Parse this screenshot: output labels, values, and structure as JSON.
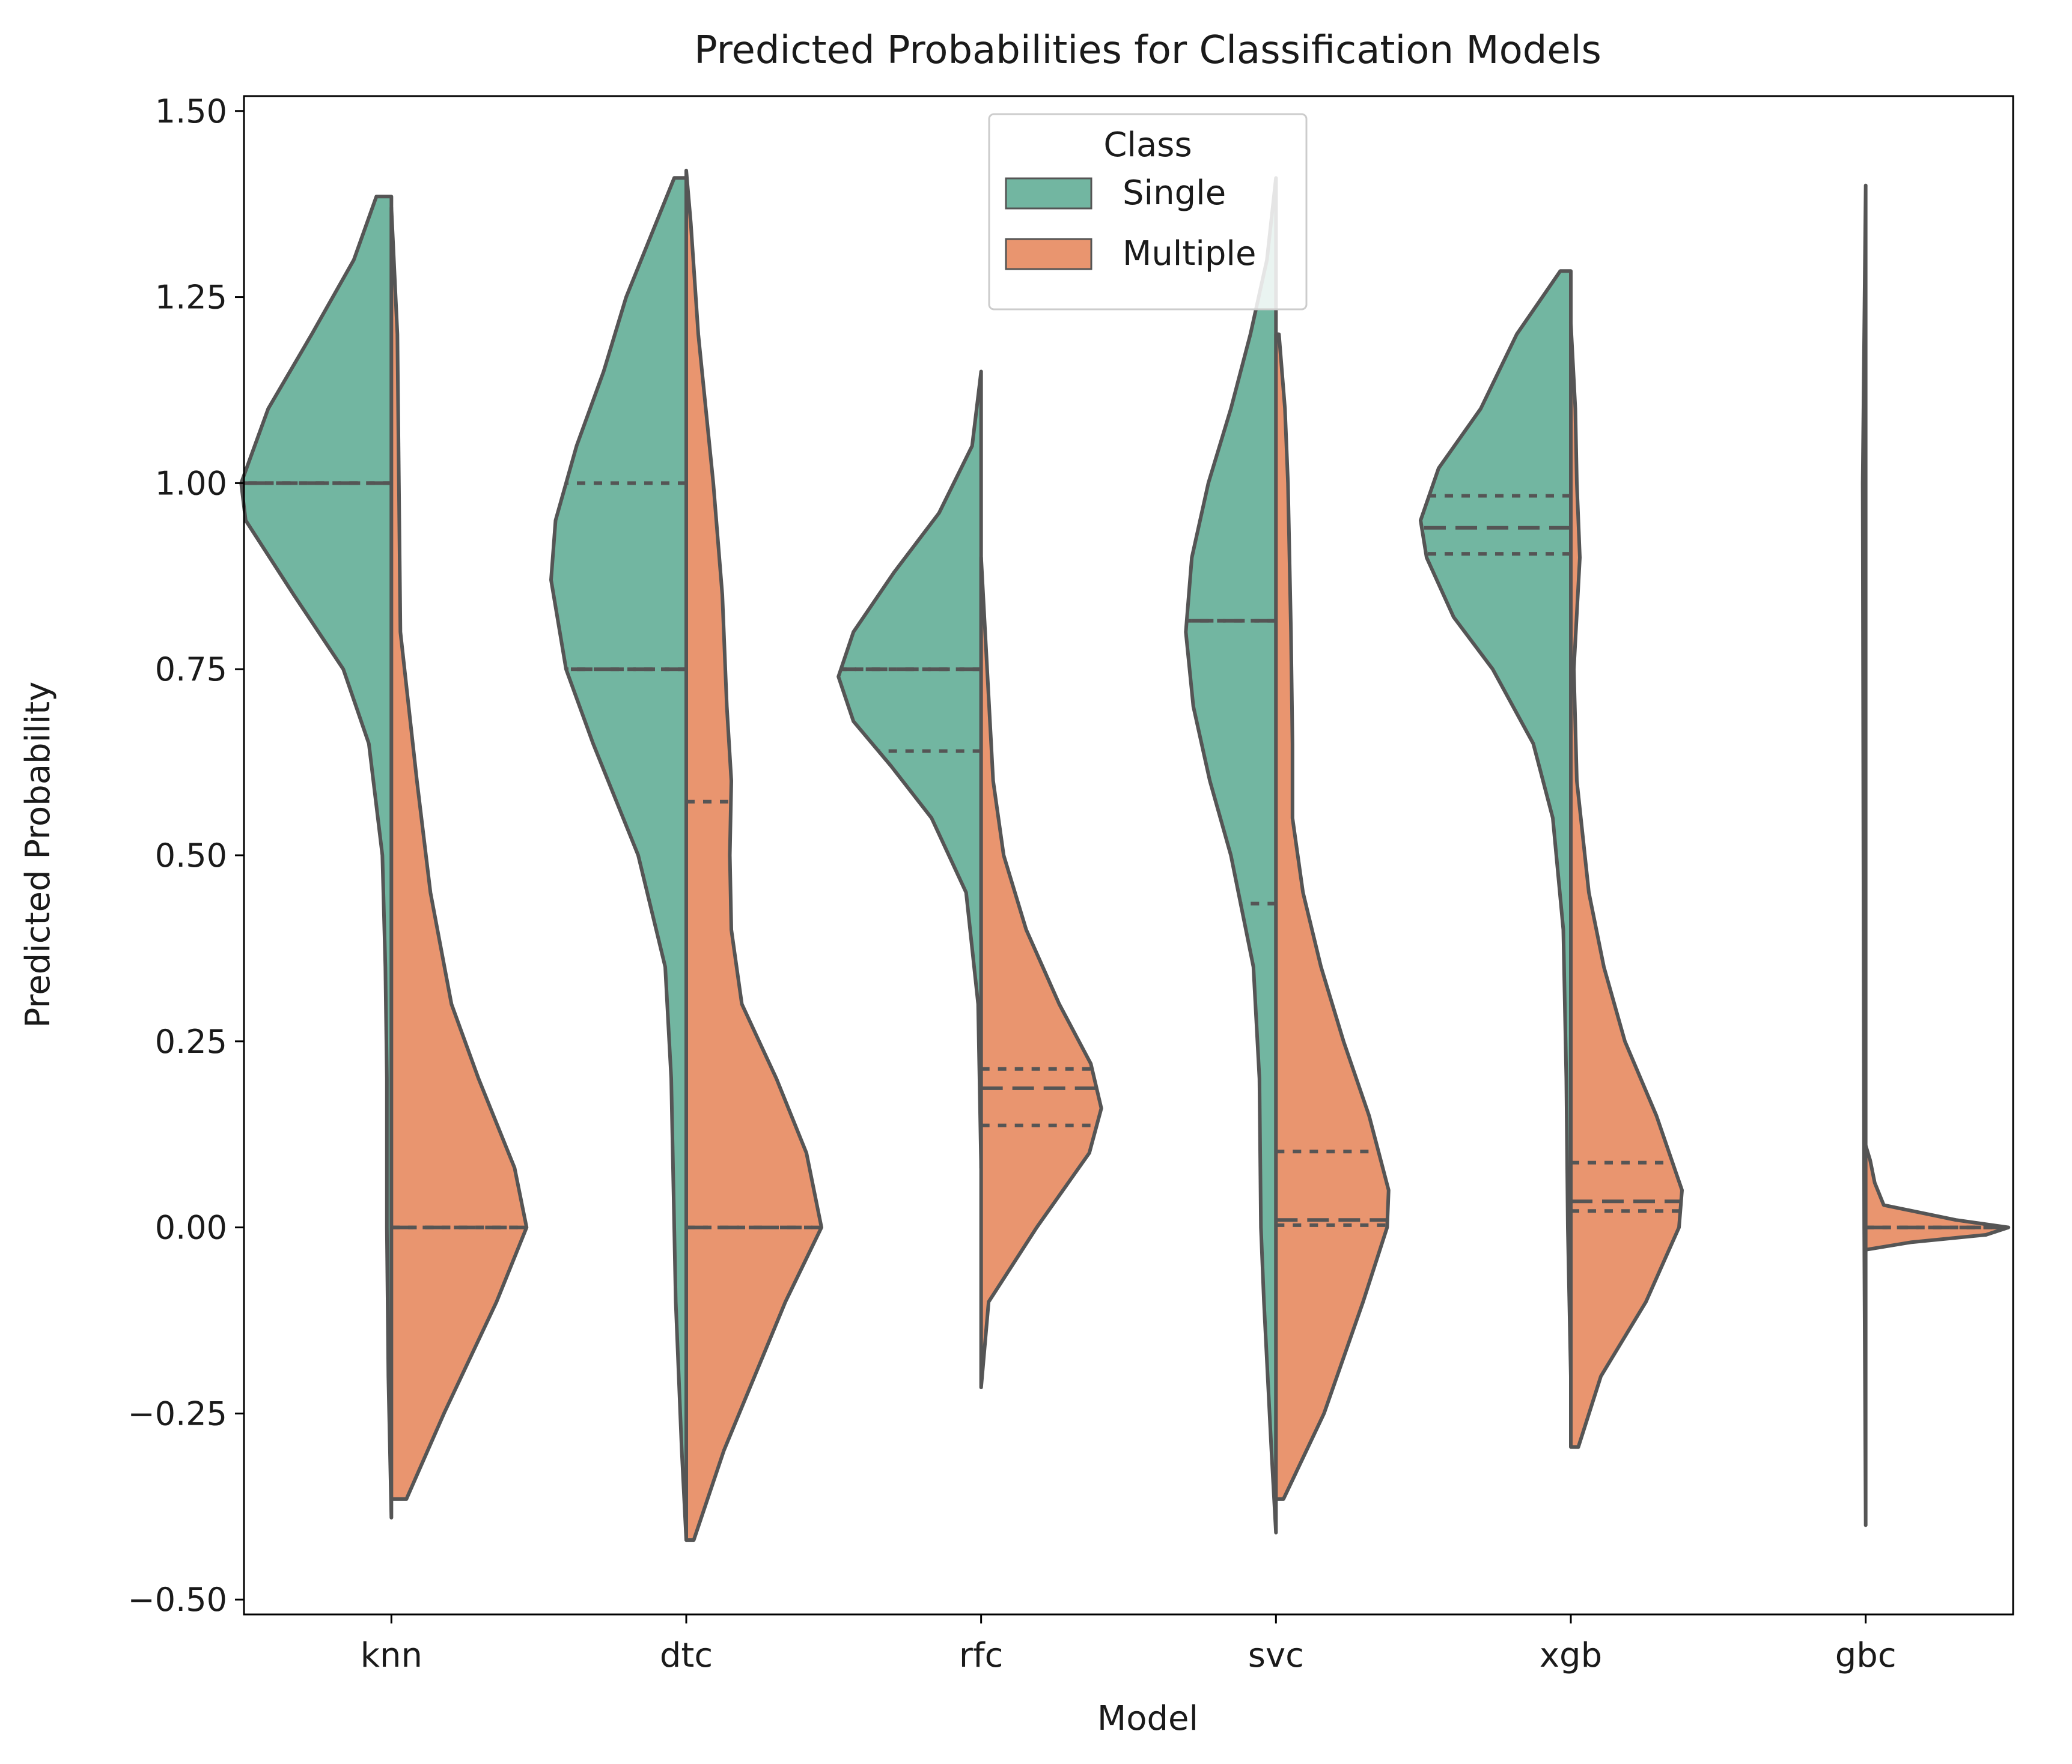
{
  "chart_data": {
    "type": "violin",
    "title": "Predicted Probabilities for Classification Models",
    "xlabel": "Model",
    "ylabel": "Predicted Probability",
    "categories": [
      "knn",
      "dtc",
      "rfc",
      "svc",
      "xgb",
      "gbc"
    ],
    "ylim": [
      -0.52,
      1.52
    ],
    "yticks": [
      -0.5,
      -0.25,
      0.0,
      0.25,
      0.5,
      0.75,
      1.0,
      1.25,
      1.5
    ],
    "ytick_labels": [
      "−0.50",
      "−0.25",
      "0.00",
      "0.25",
      "0.50",
      "0.75",
      "1.00",
      "1.25",
      "1.50"
    ],
    "split": true,
    "inner": "quartile",
    "grid": false,
    "legend": {
      "title": "Class",
      "placement": "top-center"
    },
    "series": [
      {
        "name": "Single",
        "color": "#72b6a1",
        "side": "left",
        "violins": [
          {
            "model": "knn",
            "range": [
              -0.39,
              1.385
            ],
            "profile": [
              [
                -0.39,
                0.0
              ],
              [
                -0.2,
                0.02
              ],
              [
                0.0,
                0.03
              ],
              [
                0.2,
                0.03
              ],
              [
                0.35,
                0.04
              ],
              [
                0.5,
                0.06
              ],
              [
                0.65,
                0.15
              ],
              [
                0.75,
                0.32
              ],
              [
                0.85,
                0.65
              ],
              [
                0.95,
                0.97
              ],
              [
                1.0,
                1.0
              ],
              [
                1.1,
                0.82
              ],
              [
                1.2,
                0.53
              ],
              [
                1.3,
                0.25
              ],
              [
                1.385,
                0.1
              ]
            ],
            "quartiles": [
              1.0,
              1.0,
              1.0
            ]
          },
          {
            "model": "dtc",
            "range": [
              -0.42,
              1.41
            ],
            "profile": [
              [
                -0.42,
                0.0
              ],
              [
                -0.3,
                0.03
              ],
              [
                -0.1,
                0.07
              ],
              [
                0.0,
                0.08
              ],
              [
                0.2,
                0.1
              ],
              [
                0.35,
                0.14
              ],
              [
                0.5,
                0.32
              ],
              [
                0.65,
                0.62
              ],
              [
                0.75,
                0.8
              ],
              [
                0.87,
                0.9
              ],
              [
                0.95,
                0.87
              ],
              [
                1.05,
                0.73
              ],
              [
                1.15,
                0.55
              ],
              [
                1.25,
                0.4
              ],
              [
                1.35,
                0.2
              ],
              [
                1.41,
                0.08
              ]
            ],
            "quartiles": [
              0.75,
              0.75,
              1.0
            ]
          },
          {
            "model": "rfc",
            "range": [
              0.08,
              1.15
            ],
            "profile": [
              [
                0.08,
                0.0
              ],
              [
                0.3,
                0.02
              ],
              [
                0.45,
                0.1
              ],
              [
                0.55,
                0.33
              ],
              [
                0.62,
                0.6
              ],
              [
                0.68,
                0.85
              ],
              [
                0.74,
                0.95
              ],
              [
                0.8,
                0.85
              ],
              [
                0.88,
                0.58
              ],
              [
                0.96,
                0.28
              ],
              [
                1.05,
                0.06
              ],
              [
                1.15,
                0.0
              ]
            ],
            "quartiles": [
              0.64,
              0.75,
              0.75
            ]
          },
          {
            "model": "svc",
            "range": [
              -0.41,
              1.41
            ],
            "profile": [
              [
                -0.41,
                0.0
              ],
              [
                -0.3,
                0.03
              ],
              [
                -0.1,
                0.08
              ],
              [
                0.0,
                0.1
              ],
              [
                0.2,
                0.11
              ],
              [
                0.35,
                0.15
              ],
              [
                0.5,
                0.3
              ],
              [
                0.6,
                0.44
              ],
              [
                0.7,
                0.55
              ],
              [
                0.8,
                0.6
              ],
              [
                0.9,
                0.56
              ],
              [
                1.0,
                0.45
              ],
              [
                1.1,
                0.3
              ],
              [
                1.2,
                0.17
              ],
              [
                1.3,
                0.06
              ],
              [
                1.41,
                0.0
              ]
            ],
            "quartiles": [
              0.435,
              0.815,
              0.815
            ]
          },
          {
            "model": "xgb",
            "range": [
              -0.2,
              1.285
            ],
            "profile": [
              [
                -0.2,
                0.0
              ],
              [
                0.0,
                0.02
              ],
              [
                0.2,
                0.03
              ],
              [
                0.4,
                0.05
              ],
              [
                0.55,
                0.12
              ],
              [
                0.65,
                0.25
              ],
              [
                0.75,
                0.52
              ],
              [
                0.82,
                0.78
              ],
              [
                0.9,
                0.96
              ],
              [
                0.95,
                1.0
              ],
              [
                1.02,
                0.88
              ],
              [
                1.1,
                0.6
              ],
              [
                1.2,
                0.36
              ],
              [
                1.285,
                0.07
              ]
            ],
            "quartiles": [
              0.905,
              0.94,
              0.983
            ]
          },
          {
            "model": "gbc",
            "range": [
              -0.4,
              1.4
            ],
            "profile": [
              [
                -0.4,
                0.0
              ],
              [
                0.0,
                0.01
              ],
              [
                0.5,
                0.015
              ],
              [
                1.0,
                0.02
              ],
              [
                1.4,
                0.0
              ]
            ],
            "quartiles": [
              0.0,
              0.0,
              0.0
            ]
          }
        ]
      },
      {
        "name": "Multiple",
        "color": "#e9956f",
        "side": "right",
        "violins": [
          {
            "model": "knn",
            "range": [
              -0.365,
              1.37
            ],
            "profile": [
              [
                -0.365,
                0.1
              ],
              [
                -0.25,
                0.35
              ],
              [
                -0.1,
                0.7
              ],
              [
                0.0,
                0.9
              ],
              [
                0.08,
                0.82
              ],
              [
                0.2,
                0.58
              ],
              [
                0.3,
                0.4
              ],
              [
                0.45,
                0.26
              ],
              [
                0.6,
                0.17
              ],
              [
                0.8,
                0.06
              ],
              [
                1.0,
                0.05
              ],
              [
                1.2,
                0.04
              ],
              [
                1.37,
                0.0
              ]
            ],
            "quartiles": [
              0.0,
              0.0,
              0.0
            ]
          },
          {
            "model": "dtc",
            "range": [
              -0.42,
              1.42
            ],
            "profile": [
              [
                -0.42,
                0.05
              ],
              [
                -0.3,
                0.25
              ],
              [
                -0.1,
                0.66
              ],
              [
                0.0,
                0.9
              ],
              [
                0.1,
                0.8
              ],
              [
                0.2,
                0.6
              ],
              [
                0.3,
                0.37
              ],
              [
                0.4,
                0.3
              ],
              [
                0.5,
                0.29
              ],
              [
                0.6,
                0.3
              ],
              [
                0.7,
                0.27
              ],
              [
                0.85,
                0.24
              ],
              [
                1.0,
                0.18
              ],
              [
                1.2,
                0.08
              ],
              [
                1.35,
                0.03
              ],
              [
                1.42,
                0.0
              ]
            ],
            "quartiles": [
              0.0,
              0.0,
              0.572
            ]
          },
          {
            "model": "rfc",
            "range": [
              -0.215,
              0.905
            ],
            "profile": [
              [
                -0.215,
                0.0
              ],
              [
                -0.1,
                0.05
              ],
              [
                0.0,
                0.37
              ],
              [
                0.1,
                0.72
              ],
              [
                0.16,
                0.8
              ],
              [
                0.22,
                0.73
              ],
              [
                0.3,
                0.52
              ],
              [
                0.4,
                0.3
              ],
              [
                0.5,
                0.15
              ],
              [
                0.6,
                0.08
              ],
              [
                0.75,
                0.04
              ],
              [
                0.9,
                0.0
              ]
            ],
            "quartiles": [
              0.137,
              0.187,
              0.213
            ]
          },
          {
            "model": "svc",
            "range": [
              -0.365,
              1.205
            ],
            "profile": [
              [
                -0.365,
                0.05
              ],
              [
                -0.25,
                0.32
              ],
              [
                -0.1,
                0.58
              ],
              [
                0.0,
                0.74
              ],
              [
                0.05,
                0.75
              ],
              [
                0.15,
                0.62
              ],
              [
                0.25,
                0.45
              ],
              [
                0.35,
                0.3
              ],
              [
                0.45,
                0.18
              ],
              [
                0.55,
                0.11
              ],
              [
                0.65,
                0.11
              ],
              [
                0.8,
                0.1
              ],
              [
                1.0,
                0.08
              ],
              [
                1.1,
                0.06
              ],
              [
                1.2,
                0.02
              ]
            ],
            "quartiles": [
              0.003,
              0.01,
              0.102
            ]
          },
          {
            "model": "xgb",
            "range": [
              -0.295,
              1.215
            ],
            "profile": [
              [
                -0.295,
                0.05
              ],
              [
                -0.2,
                0.2
              ],
              [
                -0.1,
                0.5
              ],
              [
                0.0,
                0.72
              ],
              [
                0.05,
                0.74
              ],
              [
                0.15,
                0.57
              ],
              [
                0.25,
                0.36
              ],
              [
                0.35,
                0.22
              ],
              [
                0.45,
                0.12
              ],
              [
                0.6,
                0.04
              ],
              [
                0.75,
                0.02
              ],
              [
                0.9,
                0.06
              ],
              [
                1.0,
                0.04
              ],
              [
                1.1,
                0.03
              ],
              [
                1.215,
                0.0
              ]
            ],
            "quartiles": [
              0.022,
              0.035,
              0.087
            ]
          },
          {
            "model": "gbc",
            "range": [
              -0.03,
              0.11
            ],
            "profile": [
              [
                -0.03,
                0.0
              ],
              [
                -0.02,
                0.3
              ],
              [
                -0.01,
                0.8
              ],
              [
                0.0,
                0.95
              ],
              [
                0.01,
                0.6
              ],
              [
                0.03,
                0.12
              ],
              [
                0.06,
                0.06
              ],
              [
                0.09,
                0.03
              ],
              [
                0.11,
                0.0
              ]
            ],
            "quartiles": [
              0.0,
              0.0,
              0.0
            ]
          }
        ]
      }
    ]
  }
}
